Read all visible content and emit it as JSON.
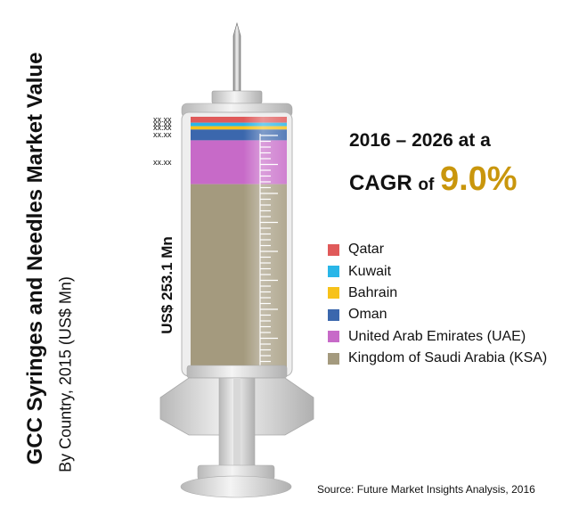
{
  "title": "GCC Syringes and Needles Market Value",
  "subtitle": "By Country, 2015 (US$ Mn)",
  "total_label": "US$ 253.1 Mn",
  "cagr": {
    "line1": "2016 – 2026 at a",
    "line2_prefix": "CAGR",
    "line2_of": "of",
    "value": "9.0%"
  },
  "source": "Source: Future Market Insights Analysis, 2016",
  "chart_data": {
    "type": "bar",
    "stacked": true,
    "categories": [
      "Qatar",
      "Kuwait",
      "Bahrain",
      "Oman",
      "United Arab Emirates (UAE)",
      "Kingdom of Saudi Arabia (KSA)"
    ],
    "colors": [
      "#e05a5a",
      "#29b6e8",
      "#f7c21a",
      "#3b67ad",
      "#c76ac8",
      "#a49a7e"
    ],
    "values": [
      6.0,
      3.5,
      3.4,
      10.9,
      44.3,
      185.0
    ],
    "total": 253.1,
    "data_labels": [
      "xx.xx",
      "xx.xx",
      "xx.xx",
      "xx.xx",
      "xx.xx",
      ""
    ]
  }
}
